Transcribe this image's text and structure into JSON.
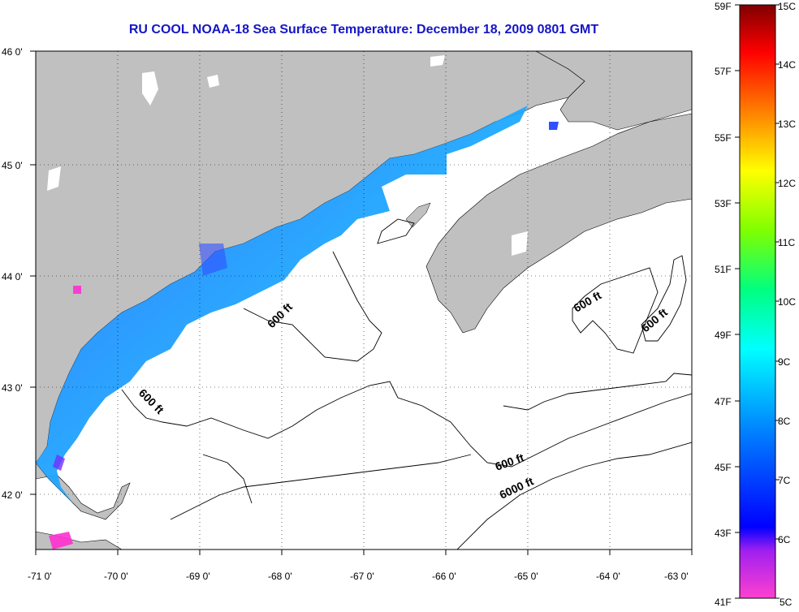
{
  "title": "RU COOL  NOAA-18  Sea Surface Temperature:  December 18, 2009 0801 GMT",
  "map": {
    "lon_range": [
      -71,
      -63
    ],
    "lat_range": [
      41.5,
      46
    ],
    "lon_ticks": [
      "-71 0'",
      "-70 0'",
      "-69 0'",
      "-68 0'",
      "-67 0'",
      "-66 0'",
      "-65 0'",
      "-64 0'",
      "-63 0'"
    ],
    "lat_ticks": [
      "42 0'",
      "43 0'",
      "44 0'",
      "45 0'",
      "46 0'"
    ],
    "land_color": "#c0c0c0",
    "ocean_color": "#ffffff",
    "contour_labels": [
      "600 ft",
      "600 ft",
      "600 ft",
      "600 ft",
      "600 ft",
      "6000 ft"
    ]
  },
  "colorbar": {
    "fahrenheit_labels": [
      "59F",
      "57F",
      "55F",
      "53F",
      "51F",
      "49F",
      "47F",
      "45F",
      "43F",
      "41F"
    ],
    "celsius_labels": [
      "15C",
      "14C",
      "13C",
      "12C",
      "11C",
      "10C",
      "9C",
      "8C",
      "7C",
      "6C",
      "5C"
    ],
    "colors": [
      "#ff40d0",
      "#a020f0",
      "#0000ff",
      "#0080ff",
      "#00ffff",
      "#00ff80",
      "#80ff00",
      "#ffff00",
      "#ff8000",
      "#ff0000",
      "#800000"
    ]
  }
}
